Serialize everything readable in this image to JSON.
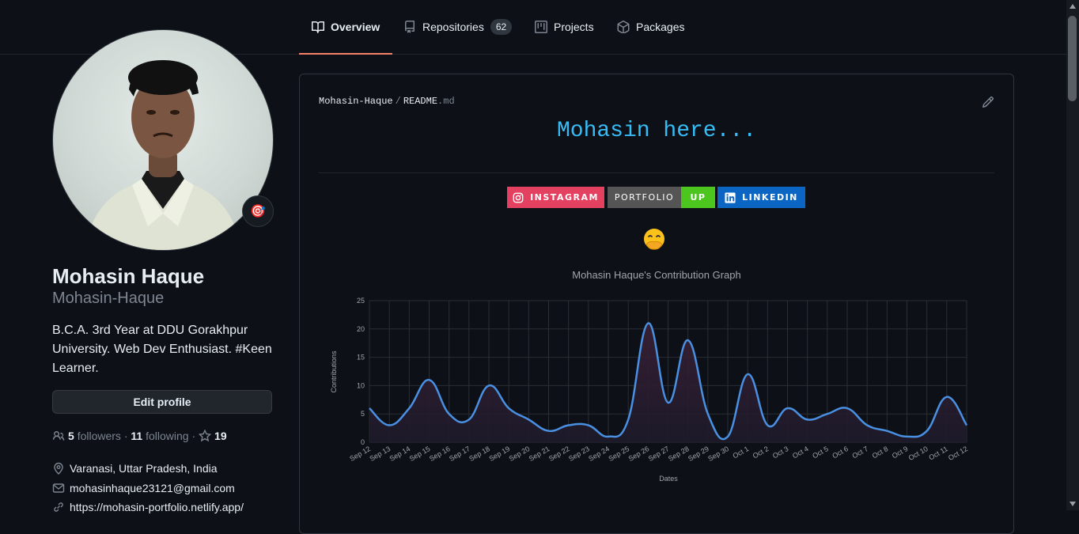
{
  "nav": {
    "tabs": [
      {
        "label": "Overview",
        "icon": "book-icon",
        "active": true
      },
      {
        "label": "Repositories",
        "icon": "repo-icon",
        "count": "62"
      },
      {
        "label": "Projects",
        "icon": "project-icon"
      },
      {
        "label": "Packages",
        "icon": "package-icon"
      }
    ]
  },
  "profile": {
    "full_name": "Mohasin Haque",
    "username": "Mohasin-Haque",
    "bio": "B.C.A. 3rd Year at DDU Gorakhpur University. Web Dev Enthusiast. #Keen Learner.",
    "status_emoji": "🎯",
    "edit_label": "Edit profile",
    "followers_count": "5",
    "followers_label": "followers",
    "following_count": "11",
    "following_label": "following",
    "stars_count": "19",
    "dot": "·",
    "location": "Varanasi, Uttar Pradesh, India",
    "email": "mohasinhaque23121@gmail.com",
    "website": "https://mohasin-portfolio.netlify.app/"
  },
  "readme": {
    "owner": "Mohasin-Haque",
    "sep": "/",
    "file_name": "README",
    "file_ext": ".md",
    "headline": "Mohasin here...",
    "badges": {
      "instagram": "INSTAGRAM",
      "portfolio_left": "PORTFOLIO",
      "portfolio_right": "UP",
      "linkedin": "LINKEDIN"
    },
    "emoji": "🤭"
  },
  "colors": {
    "accent": "#f78166",
    "headline": "#36bcf7",
    "line": "#4a90e2",
    "instagram": "#e4405f",
    "portfolio_left": "#555555",
    "portfolio_right": "#4cc61e",
    "linkedin": "#0a66c2"
  },
  "chart_data": {
    "type": "area",
    "title": "Mohasin Haque's Contribution Graph",
    "xlabel": "Dates",
    "ylabel": "Contributions",
    "ylim": [
      0,
      25
    ],
    "yticks": [
      0,
      5,
      10,
      15,
      20,
      25
    ],
    "grid": true,
    "categories": [
      "Sep 12",
      "Sep 13",
      "Sep 14",
      "Sep 15",
      "Sep 16",
      "Sep 17",
      "Sep 18",
      "Sep 19",
      "Sep 20",
      "Sep 21",
      "Sep 22",
      "Sep 23",
      "Sep 24",
      "Sep 25",
      "Sep 26",
      "Sep 27",
      "Sep 28",
      "Sep 29",
      "Sep 30",
      "Oct 1",
      "Oct 2",
      "Oct 3",
      "Oct 4",
      "Oct 5",
      "Oct 6",
      "Oct 7",
      "Oct 8",
      "Oct 9",
      "Oct 10",
      "Oct 11",
      "Oct 12"
    ],
    "values": [
      6,
      3,
      6,
      11,
      5,
      4,
      10,
      6,
      4,
      2,
      3,
      3,
      1,
      4,
      21,
      7,
      18,
      5,
      1,
      12,
      3,
      6,
      4,
      5,
      6,
      3,
      2,
      1,
      2,
      8,
      3
    ]
  }
}
